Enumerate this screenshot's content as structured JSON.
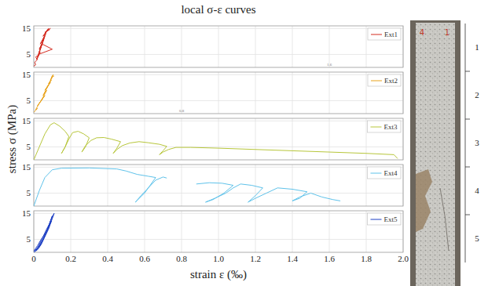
{
  "figure": {
    "title": "local σ-ε curves",
    "x_label": "strain ε (‰)",
    "y_label": "stress σ (MPa)"
  },
  "chart_data": [
    {
      "type": "line",
      "xlim": [
        0,
        2
      ],
      "ylim": [
        0,
        16
      ],
      "yticks": [
        5,
        15
      ],
      "xticks": [
        0,
        0.2,
        0.4,
        0.6,
        0.8,
        {
          "value": 1,
          "label": "1.0"
        },
        1.2,
        1.4,
        1.6,
        1.8,
        {
          "value": 2,
          "label": "2.0"
        }
      ],
      "grid": true,
      "legend": "top-right",
      "tick_labels": "y",
      "annotations": [
        {
          "text": "1.6",
          "x": 1.6,
          "y": 0.5
        }
      ],
      "series": [
        {
          "name": "Ext1",
          "color": "#d42a1f",
          "x": [
            0,
            0.01,
            0.005,
            0.02,
            0.01,
            0.03,
            0.015,
            0.035,
            0.02,
            0.04,
            0.025,
            0.1,
            0.045,
            0.03,
            0.05,
            0.03,
            0.055,
            0.04,
            0.06,
            0.035,
            0.065,
            0.045,
            0.07,
            0.05,
            0.075,
            0.06,
            0.08,
            0.07,
            0.09,
            0.06,
            0.085
          ],
          "values": [
            0.5,
            1,
            2,
            3,
            4,
            5,
            3,
            6,
            4,
            8,
            5,
            7,
            9,
            6,
            10,
            7,
            11,
            8,
            12,
            9,
            13,
            10,
            14,
            12,
            14.5,
            13,
            15,
            14,
            15,
            13.5,
            14.5
          ]
        }
      ]
    },
    {
      "type": "line",
      "xlim": [
        0,
        2
      ],
      "ylim": [
        0,
        16
      ],
      "yticks": [
        5,
        15
      ],
      "xticks": [
        0,
        0.2,
        0.4,
        0.6,
        0.8,
        {
          "value": 1,
          "label": "1.0"
        },
        1.2,
        1.4,
        1.6,
        1.8,
        {
          "value": 2,
          "label": "2.0"
        }
      ],
      "grid": true,
      "legend": "top-right",
      "tick_labels": "y",
      "annotations": [
        {
          "text": "0.8",
          "x": 0.8,
          "y": 0.5
        }
      ],
      "series": [
        {
          "name": "Ext2",
          "color": "#e8a21a",
          "x": [
            0,
            0.02,
            0.01,
            0.03,
            0.02,
            0.05,
            0.03,
            0.06,
            0.04,
            0.07,
            0.05,
            0.08,
            0.06,
            0.09,
            0.07,
            0.095,
            0.08,
            0.1,
            0.09,
            0.105,
            0.095,
            0.11
          ],
          "values": [
            0.5,
            2,
            1.5,
            4,
            3,
            6,
            4,
            7,
            5,
            9,
            7,
            11,
            9,
            12,
            10,
            13,
            11.5,
            14,
            13,
            15,
            14,
            14.5
          ]
        }
      ]
    },
    {
      "type": "line",
      "xlim": [
        0,
        2
      ],
      "ylim": [
        0,
        16
      ],
      "yticks": [
        5,
        15
      ],
      "xticks": [
        0,
        0.2,
        0.4,
        0.6,
        0.8,
        {
          "value": 1,
          "label": "1.0"
        },
        1.2,
        1.4,
        1.6,
        1.8,
        {
          "value": 2,
          "label": "2.0"
        }
      ],
      "grid": true,
      "legend": "top-right",
      "tick_labels": "y",
      "series": [
        {
          "name": "Ext3",
          "color": "#b7c63a",
          "x": [
            0,
            0.03,
            0.06,
            0.09,
            0.11,
            0.14,
            0.17,
            0.19,
            0.17,
            0.15,
            0.17,
            0.19,
            0.21,
            0.24,
            0.27,
            0.3,
            0.28,
            0.26,
            0.28,
            0.31,
            0.34,
            0.38,
            0.42,
            0.47,
            0.45,
            0.43,
            0.45,
            0.48,
            0.52,
            0.57,
            0.62,
            0.68,
            0.72,
            0.7,
            0.68,
            0.7,
            0.73,
            0.77,
            0.85,
            1.0,
            1.2,
            1.4,
            1.6,
            1.8,
            1.95,
            1.97
          ],
          "values": [
            0,
            5,
            10,
            13.5,
            14.3,
            13,
            11,
            9,
            5,
            2.5,
            5,
            8,
            10.5,
            11,
            10,
            8.5,
            5,
            3,
            5.5,
            7.5,
            8.5,
            8.6,
            8,
            7,
            4.5,
            2.5,
            4,
            5.5,
            6.5,
            7,
            6.6,
            6,
            5.2,
            3.5,
            2,
            3,
            4,
            4.8,
            4.8,
            4.5,
            4,
            3.5,
            3,
            2.5,
            2,
            0.5
          ]
        }
      ]
    },
    {
      "type": "line",
      "xlim": [
        0,
        2
      ],
      "ylim": [
        0,
        16
      ],
      "yticks": [
        5,
        15
      ],
      "xticks": [
        0,
        0.2,
        0.4,
        0.6,
        0.8,
        {
          "value": 1,
          "label": "1.0"
        },
        1.2,
        1.4,
        1.6,
        1.8,
        {
          "value": 2,
          "label": "2.0"
        }
      ],
      "grid": true,
      "legend": "top-right",
      "tick_labels": "y",
      "series": [
        {
          "name": "Ext4",
          "color": "#5ec2ea",
          "x": [
            0,
            0.03,
            0.06,
            0.1,
            0.15,
            0.3,
            0.45,
            0.5,
            0.56,
            0.62,
            0.66,
            0.6,
            0.55,
            0.58,
            0.62,
            0.66,
            0.7,
            0.72,
            null,
            0.88,
            0.95,
            1.02,
            1.08,
            1.03,
            0.97,
            0.93,
            0.98,
            1.04,
            1.08,
            1.12,
            1.18,
            1.24,
            1.2,
            1.16,
            1.2,
            1.26,
            1.32,
            1.4,
            1.48,
            1.44,
            1.4,
            1.44,
            1.5,
            1.56,
            1.62,
            1.66
          ],
          "values": [
            0,
            6,
            11,
            14,
            14.6,
            14.7,
            14.3,
            13.5,
            12.2,
            11.5,
            11,
            5,
            1.5,
            4,
            7,
            10,
            11.2,
            10.8,
            null,
            8.5,
            9,
            8.8,
            8,
            5,
            2.5,
            1.5,
            3,
            5,
            7,
            8.5,
            8,
            7,
            4,
            1.5,
            3,
            5,
            7,
            6.5,
            5.5,
            3,
            2,
            3.5,
            5,
            3.5,
            2.5,
            2
          ]
        }
      ]
    },
    {
      "type": "line",
      "xlim": [
        0,
        2
      ],
      "ylim": [
        0,
        16
      ],
      "yticks": [
        5,
        15
      ],
      "xticks": [
        0,
        0.2,
        0.4,
        0.6,
        0.8,
        {
          "value": 1,
          "label": "1.0"
        },
        1.2,
        1.4,
        1.6,
        1.8,
        {
          "value": 2,
          "label": "2.0"
        }
      ],
      "grid": true,
      "legend": "top-right",
      "series": [
        {
          "name": "Ext5",
          "color": "#1d3fc4",
          "x": [
            0,
            0.02,
            0.04,
            0.06,
            0.08,
            0.09,
            0.1,
            0.11,
            0.09,
            0.07,
            0.05,
            0.03,
            0.01,
            0.03,
            0.05,
            0.07,
            0.085,
            0.1,
            0.08,
            0.06,
            0.04,
            0.02,
            0,
            0.02,
            0.04,
            0.06,
            0.08,
            0.095,
            0.07,
            0.05,
            0.03,
            0.01
          ],
          "values": [
            0,
            1,
            3,
            6,
            9,
            11,
            13,
            15,
            12,
            8,
            5,
            2,
            0.5,
            3,
            6,
            9,
            11,
            14,
            10,
            6.5,
            3.5,
            1.5,
            0.5,
            2.5,
            5,
            7,
            9.5,
            12,
            8,
            5,
            2.5,
            1
          ]
        }
      ]
    }
  ],
  "specimen": {
    "marks": [
      "4",
      "1"
    ],
    "segments": [
      "1",
      "2",
      "3",
      "4",
      "5"
    ]
  }
}
